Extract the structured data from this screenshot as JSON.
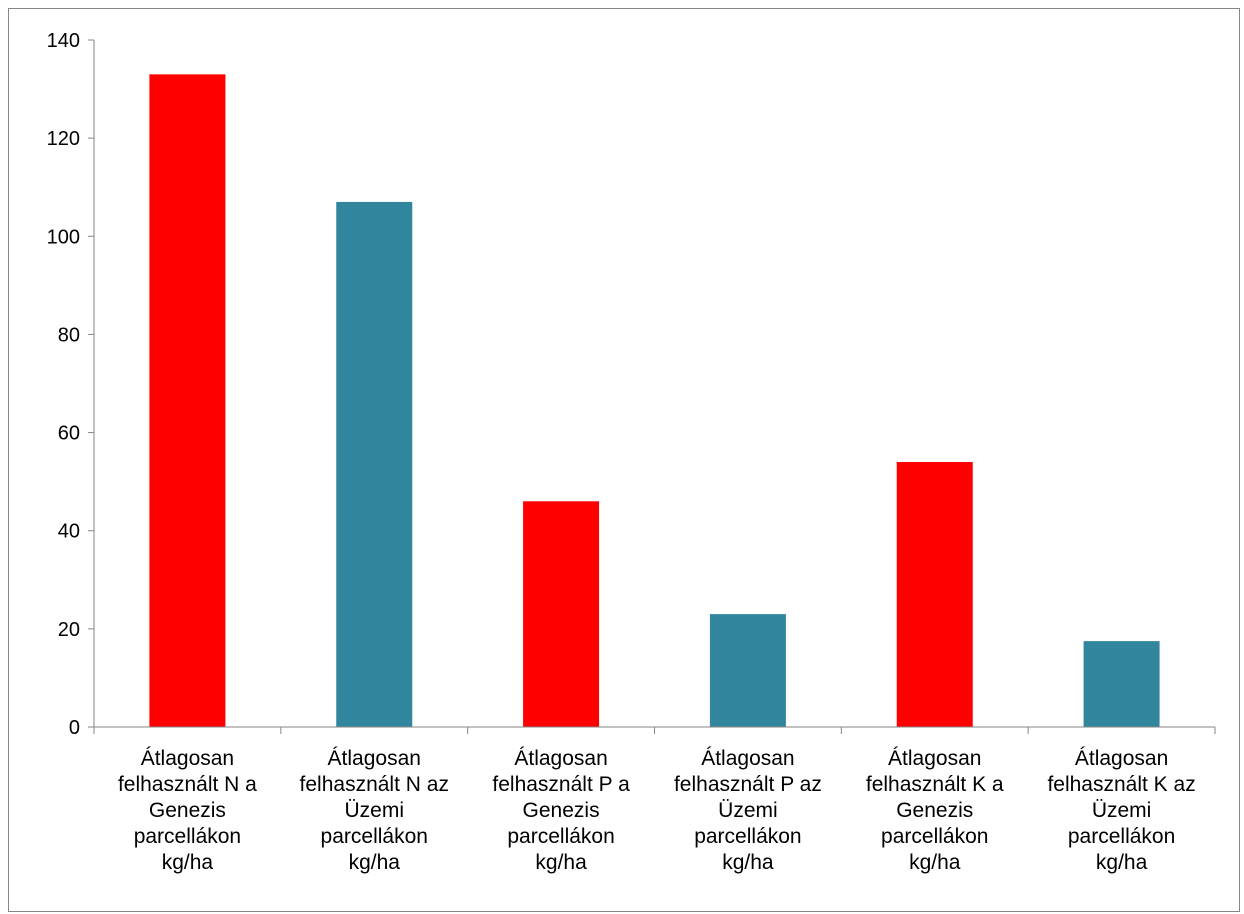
{
  "chart_data": {
    "type": "bar",
    "title": "",
    "xlabel": "",
    "ylabel": "",
    "ylim": [
      0,
      140
    ],
    "yticks": [
      0,
      20,
      40,
      60,
      80,
      100,
      120,
      140
    ],
    "grid": false,
    "legend": "none",
    "categories": [
      [
        "Átlagosan",
        "felhasznált N a",
        "Genezis",
        "parcellákon",
        "kg/ha"
      ],
      [
        "Átlagosan",
        "felhasznált N az",
        "Üzemi",
        "parcellákon",
        "kg/ha"
      ],
      [
        "Átlagosan",
        "felhasznált P a",
        "Genezis",
        "parcellákon",
        "kg/ha"
      ],
      [
        "Átlagosan",
        "felhasznált P az",
        "Üzemi",
        "parcellákon",
        "kg/ha"
      ],
      [
        "Átlagosan",
        "felhasznált K a",
        "Genezis",
        "parcellákon",
        "kg/ha"
      ],
      [
        "Átlagosan",
        "felhasznált K az",
        "Üzemi",
        "parcellákon",
        "kg/ha"
      ]
    ],
    "values": [
      133,
      107,
      46,
      23,
      54,
      17.5
    ],
    "colors": [
      "#ff0000",
      "#31859c",
      "#ff0000",
      "#31859c",
      "#ff0000",
      "#31859c"
    ]
  }
}
